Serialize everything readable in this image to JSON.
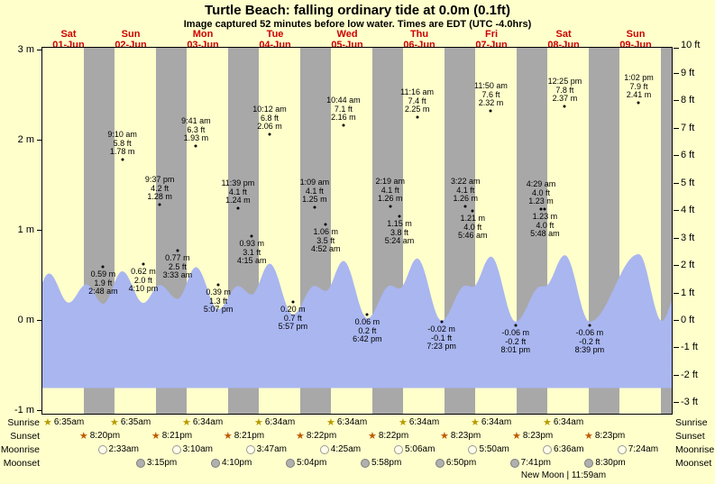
{
  "header": {
    "title": "Turtle Beach: falling  ordinary tide at 0.0m (0.1ft)",
    "subtitle": "Image captured 52 minutes before low water. Times are EDT (UTC -4.0hrs)"
  },
  "colors": {
    "background": "#ffffcc",
    "night_band": "#a8a8a8",
    "tide_fill": "#a9b6f0",
    "date_red": "#cc0000",
    "text": "#000000",
    "sunrise_star": "#b89b00",
    "sunset_star": "#c05a00"
  },
  "axes": {
    "left": {
      "unit": "m",
      "ticks": [
        {
          "label": "3 m",
          "value": 3
        },
        {
          "label": "2 m",
          "value": 2
        },
        {
          "label": "1 m",
          "value": 1
        },
        {
          "label": "0 m",
          "value": 0
        },
        {
          "label": "-1 m",
          "value": -1
        }
      ]
    },
    "right": {
      "unit": "ft",
      "ticks": [
        {
          "label": "10 ft",
          "value": 10
        },
        {
          "label": "9 ft",
          "value": 9
        },
        {
          "label": "8 ft",
          "value": 8
        },
        {
          "label": "7 ft",
          "value": 7
        },
        {
          "label": "6 ft",
          "value": 6
        },
        {
          "label": "5 ft",
          "value": 5
        },
        {
          "label": "4 ft",
          "value": 4
        },
        {
          "label": "3 ft",
          "value": 3
        },
        {
          "label": "2 ft",
          "value": 2
        },
        {
          "label": "1 ft",
          "value": 1
        },
        {
          "label": "0 ft",
          "value": 0
        },
        {
          "label": "-1 ft",
          "value": -1
        },
        {
          "label": "-2 ft",
          "value": -2
        },
        {
          "label": "-3 ft",
          "value": -3
        }
      ]
    }
  },
  "chart_data": {
    "type": "area",
    "title": "Turtle Beach tide heights, 01-Jun to 09-Jun",
    "ylabel_left": "meters",
    "ylabel_right": "feet",
    "ylim_m": [
      -1,
      3
    ],
    "days": [
      {
        "dow": "Sat",
        "date": "01-Jun"
      },
      {
        "dow": "Sun",
        "date": "02-Jun"
      },
      {
        "dow": "Mon",
        "date": "03-Jun"
      },
      {
        "dow": "Tue",
        "date": "04-Jun"
      },
      {
        "dow": "Wed",
        "date": "05-Jun"
      },
      {
        "dow": "Thu",
        "date": "06-Jun"
      },
      {
        "dow": "Fri",
        "date": "07-Jun"
      },
      {
        "dow": "Sat",
        "date": "08-Jun"
      },
      {
        "dow": "Sun",
        "date": "09-Jun"
      }
    ],
    "night_bands": [
      {
        "s_day": 1,
        "s_hour": 20.333,
        "e_day": 2,
        "e_hour": 6.583
      },
      {
        "s_day": 2,
        "s_hour": 20.35,
        "e_day": 3,
        "e_hour": 6.567
      },
      {
        "s_day": 3,
        "s_hour": 20.35,
        "e_day": 4,
        "e_hour": 6.567
      },
      {
        "s_day": 4,
        "s_hour": 20.367,
        "e_day": 5,
        "e_hour": 6.567
      },
      {
        "s_day": 5,
        "s_hour": 20.367,
        "e_day": 6,
        "e_hour": 6.567
      },
      {
        "s_day": 6,
        "s_hour": 20.383,
        "e_day": 7,
        "e_hour": 6.567
      },
      {
        "s_day": 7,
        "s_hour": 20.383,
        "e_day": 8,
        "e_hour": 6.567
      },
      {
        "s_day": 8,
        "s_hour": 20.383,
        "e_day": 9,
        "e_hour": 6.567
      },
      {
        "s_day": 9,
        "s_hour": 20.4,
        "e_day": 10,
        "e_hour": 0.0
      }
    ],
    "tide_events": [
      {
        "day": 2,
        "hour": 2.8,
        "time": "2:48 am",
        "height_m": 0.59,
        "height_ft": 1.9,
        "type": "low",
        "lines": [
          "0.59 m",
          "1.9 ft",
          "2:48 am"
        ]
      },
      {
        "day": 2,
        "hour": 9.167,
        "time": "9:10 am",
        "height_m": 1.78,
        "height_ft": 5.8,
        "type": "high",
        "lines": [
          "9:10 am",
          "5.8 ft",
          "1.78 m"
        ]
      },
      {
        "day": 2,
        "hour": 16.167,
        "time": "4:10 pm",
        "height_m": 0.62,
        "height_ft": 2.0,
        "type": "low",
        "lines": [
          "0.62 m",
          "2.0 ft",
          "4:10 pm"
        ]
      },
      {
        "day": 2,
        "hour": 21.617,
        "time": "9:37 pm",
        "height_m": 1.28,
        "height_ft": 4.2,
        "type": "high",
        "lines": [
          "9:37 pm",
          "4.2 ft",
          "1.28 m"
        ]
      },
      {
        "day": 3,
        "hour": 3.55,
        "time": "3:33 am",
        "height_m": 0.77,
        "height_ft": 2.5,
        "type": "low",
        "lines": [
          "0.77 m",
          "2.5 ft",
          "3:33 am"
        ]
      },
      {
        "day": 3,
        "hour": 9.683,
        "time": "9:41 am",
        "height_m": 1.93,
        "height_ft": 6.3,
        "type": "high",
        "lines": [
          "9:41 am",
          "6.3 ft",
          "1.93 m"
        ]
      },
      {
        "day": 3,
        "hour": 17.117,
        "time": "5:07 pm",
        "height_m": 0.39,
        "height_ft": 1.3,
        "type": "low",
        "lines": [
          "0.39 m",
          "1.3 ft",
          "5:07 pm"
        ]
      },
      {
        "day": 3,
        "hour": 23.65,
        "time": "11:39 pm",
        "height_m": 1.24,
        "height_ft": 4.1,
        "type": "high",
        "lines": [
          "11:39 pm",
          "4.1 ft",
          "1.24 m"
        ]
      },
      {
        "day": 4,
        "hour": 4.25,
        "time": "4:15 am",
        "height_m": 0.93,
        "height_ft": 3.1,
        "type": "low",
        "lines": [
          "0.93 m",
          "3.1 ft",
          "4:15 am"
        ]
      },
      {
        "day": 4,
        "hour": 10.2,
        "time": "10:12 am",
        "height_m": 2.06,
        "height_ft": 6.8,
        "type": "high",
        "lines": [
          "10:12 am",
          "6.8 ft",
          "2.06 m"
        ]
      },
      {
        "day": 4,
        "hour": 17.95,
        "time": "5:57 pm",
        "height_m": 0.2,
        "height_ft": 0.7,
        "type": "low",
        "lines": [
          "0.20 m",
          "0.7 ft",
          "5:57 pm"
        ]
      },
      {
        "day": 5,
        "hour": 1.15,
        "time": "1:09 am",
        "height_m": 1.25,
        "height_ft": 4.1,
        "type": "high",
        "lines": [
          "1:09 am",
          "4.1 ft",
          "1.25 m"
        ]
      },
      {
        "day": 5,
        "hour": 4.867,
        "time": "4:52 am",
        "height_m": 1.06,
        "height_ft": 3.5,
        "type": "low",
        "lines": [
          "1.06 m",
          "3.5 ft",
          "4:52 am"
        ]
      },
      {
        "day": 5,
        "hour": 10.733,
        "time": "10:44 am",
        "height_m": 2.16,
        "height_ft": 7.1,
        "type": "high",
        "lines": [
          "10:44 am",
          "7.1 ft",
          "2.16 m"
        ]
      },
      {
        "day": 5,
        "hour": 18.7,
        "time": "6:42 pm",
        "height_m": 0.06,
        "height_ft": 0.2,
        "type": "low",
        "lines": [
          "0.06 m",
          "0.2 ft",
          "6:42 pm"
        ]
      },
      {
        "day": 6,
        "hour": 2.317,
        "time": "2:19 am",
        "height_m": 1.26,
        "height_ft": 4.1,
        "type": "high",
        "lines": [
          "2:19 am",
          "4.1 ft",
          "1.26 m"
        ]
      },
      {
        "day": 6,
        "hour": 5.4,
        "time": "5:24 am",
        "height_m": 1.15,
        "height_ft": 3.8,
        "type": "low",
        "lines": [
          "1.15 m",
          "3.8 ft",
          "5:24 am"
        ]
      },
      {
        "day": 6,
        "hour": 11.267,
        "time": "11:16 am",
        "height_m": 2.25,
        "height_ft": 7.4,
        "type": "high",
        "lines": [
          "11:16 am",
          "7.4 ft",
          "2.25 m"
        ]
      },
      {
        "day": 6,
        "hour": 19.383,
        "time": "7:23 pm",
        "height_m": -0.02,
        "height_ft": -0.1,
        "type": "low",
        "lines": [
          "-0.02 m",
          "-0.1 ft",
          "7:23 pm"
        ]
      },
      {
        "day": 7,
        "hour": 3.367,
        "time": "3:22 am",
        "height_m": 1.26,
        "height_ft": 4.1,
        "type": "high",
        "lines": [
          "3:22 am",
          "4.1 ft",
          "1.26 m"
        ]
      },
      {
        "day": 7,
        "hour": 5.767,
        "time": "5:46 am",
        "height_m": 1.21,
        "height_ft": 4.0,
        "type": "low",
        "lines": [
          "1.21 m",
          "4.0 ft",
          "5:46 am"
        ]
      },
      {
        "day": 7,
        "hour": 11.833,
        "time": "11:50 am",
        "height_m": 2.32,
        "height_ft": 7.6,
        "type": "high",
        "lines": [
          "11:50 am",
          "7.6 ft",
          "2.32 m"
        ]
      },
      {
        "day": 7,
        "hour": 20.017,
        "time": "8:01 pm",
        "height_m": -0.06,
        "height_ft": -0.2,
        "type": "low",
        "lines": [
          "-0.06 m",
          "-0.2 ft",
          "8:01 pm"
        ]
      },
      {
        "day": 8,
        "hour": 4.483,
        "time": "4:29 am",
        "height_m": 1.23,
        "height_ft": 4.0,
        "type": "high",
        "lines": [
          "4:29 am",
          "4.0 ft",
          "1.23 m"
        ]
      },
      {
        "day": 8,
        "hour": 5.8,
        "time": "5:48 am",
        "height_m": 1.23,
        "height_ft": 4.0,
        "type": "low",
        "lines": [
          "1.23 m",
          "4.0 ft",
          "5:48 am"
        ]
      },
      {
        "day": 8,
        "hour": 12.417,
        "time": "12:25 pm",
        "height_m": 2.37,
        "height_ft": 7.8,
        "type": "high",
        "lines": [
          "12:25 pm",
          "7.8 ft",
          "2.37 m"
        ]
      },
      {
        "day": 8,
        "hour": 20.65,
        "time": "8:39 pm",
        "height_m": -0.06,
        "height_ft": -0.2,
        "type": "low",
        "lines": [
          "-0.06 m",
          "-0.2 ft",
          "8:39 pm"
        ]
      },
      {
        "day": 9,
        "hour": 13.033,
        "time": "1:02 pm",
        "height_m": 2.41,
        "height_ft": 7.9,
        "type": "high",
        "lines": [
          "1:02 pm",
          "7.9 ft",
          "2.41 m"
        ]
      }
    ],
    "curve_padding_events": [
      {
        "day": 1,
        "hour": 2.6,
        "height_m": 0.55
      },
      {
        "day": 1,
        "hour": 8.8,
        "height_m": 1.7
      },
      {
        "day": 1,
        "hour": 15.3,
        "height_m": 0.63
      },
      {
        "day": 1,
        "hour": 21.2,
        "height_m": 1.3
      },
      {
        "day": 9,
        "hour": 20.75,
        "height_m": -0.04
      },
      {
        "day": 10,
        "hour": 1.5,
        "height_m": 0.9
      }
    ],
    "sun_moon_rows": [
      {
        "id": "sunrise",
        "label": "Sunrise",
        "icon": "sunrise-star",
        "entries": [
          {
            "day": 1,
            "hour": 6.583,
            "time": "6:35am"
          },
          {
            "day": 2,
            "hour": 6.583,
            "time": "6:35am"
          },
          {
            "day": 3,
            "hour": 6.567,
            "time": "6:34am"
          },
          {
            "day": 4,
            "hour": 6.567,
            "time": "6:34am"
          },
          {
            "day": 5,
            "hour": 6.567,
            "time": "6:34am"
          },
          {
            "day": 6,
            "hour": 6.567,
            "time": "6:34am"
          },
          {
            "day": 7,
            "hour": 6.567,
            "time": "6:34am"
          },
          {
            "day": 8,
            "hour": 6.567,
            "time": "6:34am"
          }
        ]
      },
      {
        "id": "sunset",
        "label": "Sunset",
        "icon": "sunset-star",
        "entries": [
          {
            "day": 1,
            "hour": 20.333,
            "time": "8:20pm"
          },
          {
            "day": 2,
            "hour": 20.35,
            "time": "8:21pm"
          },
          {
            "day": 3,
            "hour": 20.35,
            "time": "8:21pm"
          },
          {
            "day": 4,
            "hour": 20.367,
            "time": "8:22pm"
          },
          {
            "day": 5,
            "hour": 20.367,
            "time": "8:22pm"
          },
          {
            "day": 6,
            "hour": 20.383,
            "time": "8:23pm"
          },
          {
            "day": 7,
            "hour": 20.383,
            "time": "8:23pm"
          },
          {
            "day": 8,
            "hour": 20.383,
            "time": "8:23pm"
          }
        ]
      },
      {
        "id": "moonrise",
        "label": "Moonrise",
        "icon": "moonrise-circle",
        "entries": [
          {
            "day": 2,
            "hour": 2.55,
            "time": "2:33am"
          },
          {
            "day": 3,
            "hour": 3.167,
            "time": "3:10am"
          },
          {
            "day": 4,
            "hour": 3.783,
            "time": "3:47am"
          },
          {
            "day": 5,
            "hour": 4.417,
            "time": "4:25am"
          },
          {
            "day": 6,
            "hour": 5.1,
            "time": "5:06am"
          },
          {
            "day": 7,
            "hour": 5.833,
            "time": "5:50am"
          },
          {
            "day": 8,
            "hour": 6.6,
            "time": "6:36am"
          },
          {
            "day": 9,
            "hour": 7.4,
            "time": "7:24am"
          }
        ]
      },
      {
        "id": "moonset",
        "label": "Moonset",
        "icon": "moonset-circle",
        "entries": [
          {
            "day": 2,
            "hour": 15.25,
            "time": "3:15pm"
          },
          {
            "day": 3,
            "hour": 16.167,
            "time": "4:10pm"
          },
          {
            "day": 4,
            "hour": 17.067,
            "time": "5:04pm"
          },
          {
            "day": 5,
            "hour": 17.967,
            "time": "5:58pm"
          },
          {
            "day": 6,
            "hour": 18.833,
            "time": "6:50pm"
          },
          {
            "day": 7,
            "hour": 19.683,
            "time": "7:41pm"
          },
          {
            "day": 8,
            "hour": 20.5,
            "time": "8:30pm"
          }
        ]
      }
    ],
    "new_moon": {
      "label": "New Moon | 11:59am",
      "day": 8,
      "hour": 11.983
    }
  }
}
